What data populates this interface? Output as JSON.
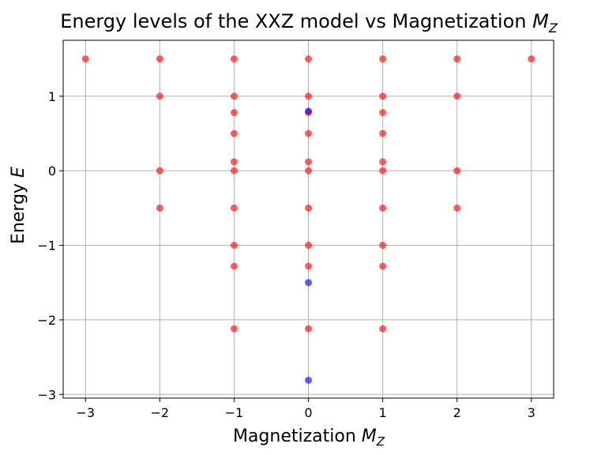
{
  "chart_data": {
    "type": "scatter",
    "title": "Energy levels of the XXZ model vs Magnetization M_Z",
    "title_main": "Energy levels of the XXZ model vs Magnetization ",
    "title_math": "M",
    "title_sub": "Z",
    "xlabel_main": "Magnetization ",
    "xlabel_math": "M",
    "xlabel_sub": "Z",
    "ylabel_main": "Energy ",
    "ylabel_math": "E",
    "xlim": [
      -3.3,
      3.3
    ],
    "ylim": [
      -3.05,
      1.75
    ],
    "xticks": [
      -3,
      -2,
      -1,
      0,
      1,
      2,
      3
    ],
    "xtick_labels": [
      "−3",
      "−2",
      "−1",
      "0",
      "1",
      "2",
      "3"
    ],
    "yticks": [
      -3,
      -2,
      -1,
      0,
      1
    ],
    "ytick_labels": [
      "−3",
      "−2",
      "−1",
      "0",
      "1"
    ],
    "grid": true,
    "colors": {
      "red": "#ff0000",
      "blue": "#0000ff"
    },
    "series": [
      {
        "color": "red",
        "points": [
          [
            -3,
            1.5
          ],
          [
            -2,
            1.5
          ],
          [
            -2,
            1.0
          ],
          [
            -2,
            0.0
          ],
          [
            -2,
            -0.5
          ],
          [
            -1,
            1.5
          ],
          [
            -1,
            1.0
          ],
          [
            -1,
            0.78
          ],
          [
            -1,
            0.5
          ],
          [
            -1,
            0.12
          ],
          [
            -1,
            0.0
          ],
          [
            -1,
            -0.5
          ],
          [
            -1,
            -1.0
          ],
          [
            -1,
            -1.28
          ],
          [
            -1,
            -2.12
          ],
          [
            0,
            1.5
          ],
          [
            0,
            1.0
          ],
          [
            0,
            0.78
          ],
          [
            0,
            0.5
          ],
          [
            0,
            0.12
          ],
          [
            0,
            0.0
          ],
          [
            0,
            -0.5
          ],
          [
            0,
            -1.0
          ],
          [
            0,
            -1.28
          ],
          [
            0,
            -2.12
          ],
          [
            1,
            1.5
          ],
          [
            1,
            1.0
          ],
          [
            1,
            0.78
          ],
          [
            1,
            0.5
          ],
          [
            1,
            0.12
          ],
          [
            1,
            0.0
          ],
          [
            1,
            -0.5
          ],
          [
            1,
            -1.0
          ],
          [
            1,
            -1.28
          ],
          [
            1,
            -2.12
          ],
          [
            2,
            1.5
          ],
          [
            2,
            1.0
          ],
          [
            2,
            0.0
          ],
          [
            2,
            -0.5
          ],
          [
            3,
            1.5
          ]
        ]
      },
      {
        "color": "blue",
        "points": [
          [
            0,
            0.8
          ],
          [
            0,
            -1.5
          ],
          [
            0,
            -2.81
          ]
        ]
      }
    ]
  }
}
